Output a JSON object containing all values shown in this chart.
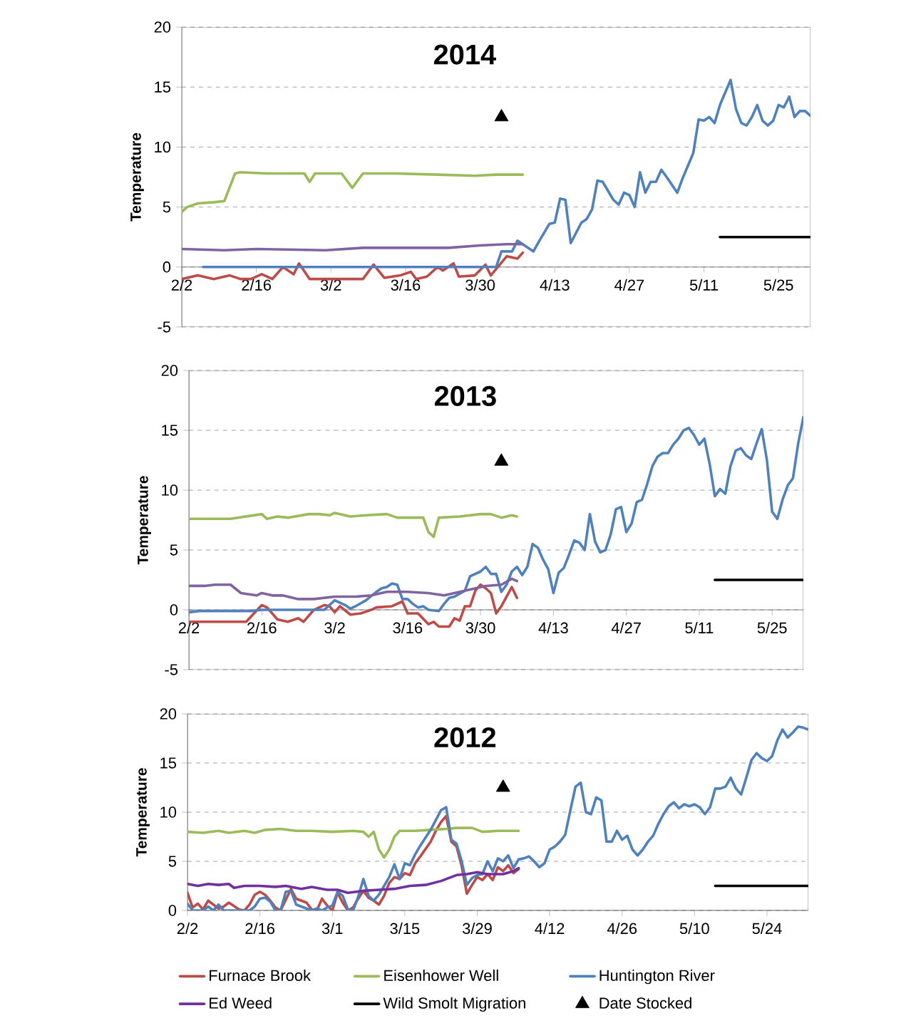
{
  "chart_data": [
    {
      "type": "line",
      "title": "2014",
      "ylabel": "Temperature",
      "xlim": [
        "2014-02-02",
        "2014-05-31"
      ],
      "ylim": [
        -5,
        20
      ],
      "yticks": [
        -5,
        0,
        5,
        10,
        15,
        20
      ],
      "grid": "y",
      "legend": false,
      "xticks": [
        {
          "value": "2014-02-02",
          "label": "2/2"
        },
        {
          "value": "2014-02-16",
          "label": "2/16"
        },
        {
          "value": "2014-03-02",
          "label": "3/2"
        },
        {
          "value": "2014-03-16",
          "label": "3/16"
        },
        {
          "value": "2014-03-30",
          "label": "3/30"
        },
        {
          "value": "2014-04-13",
          "label": "4/13"
        },
        {
          "value": "2014-04-27",
          "label": "4/27"
        },
        {
          "value": "2014-05-11",
          "label": "5/11"
        },
        {
          "value": "2014-05-25",
          "label": "5/25"
        }
      ],
      "series": [
        {
          "color": "#be4b48",
          "x": [
            "2014-02-02",
            "2014-02-05",
            "2014-02-08",
            "2014-02-11",
            "2014-02-13",
            "2014-02-15",
            "2014-02-17",
            "2014-02-19",
            "2014-02-21",
            "2014-02-23",
            "2014-02-24",
            "2014-02-26",
            "2014-03-08",
            "2014-03-10",
            "2014-03-12",
            "2014-03-15",
            "2014-03-17",
            "2014-03-18",
            "2014-03-20",
            "2014-03-22",
            "2014-03-23",
            "2014-03-25",
            "2014-03-26",
            "2014-03-29",
            "2014-03-31",
            "2014-04-01",
            "2014-04-04",
            "2014-04-06",
            "2014-04-07"
          ],
          "values": [
            -1.0,
            -0.7,
            -1.0,
            -0.7,
            -1.0,
            -1.0,
            -0.6,
            -1.0,
            0.0,
            -0.6,
            0.3,
            -1.0,
            -1.0,
            0.2,
            -0.9,
            -0.7,
            -0.4,
            -1.0,
            -0.8,
            0.0,
            -0.3,
            0.3,
            -0.8,
            -0.7,
            0.2,
            -0.7,
            0.9,
            0.7,
            1.2
          ]
        },
        {
          "color": "#9bbb59",
          "x": [
            "2014-02-02",
            "2014-02-03",
            "2014-02-05",
            "2014-02-08",
            "2014-02-10",
            "2014-02-12",
            "2014-02-13",
            "2014-02-18",
            "2014-02-22",
            "2014-02-25",
            "2014-02-26",
            "2014-02-27",
            "2014-03-04",
            "2014-03-06",
            "2014-03-08",
            "2014-03-14",
            "2014-03-22",
            "2014-03-29",
            "2014-04-02",
            "2014-04-07"
          ],
          "values": [
            4.6,
            5.0,
            5.3,
            5.4,
            5.5,
            7.8,
            7.9,
            7.8,
            7.8,
            7.8,
            7.1,
            7.8,
            7.8,
            6.6,
            7.8,
            7.8,
            7.7,
            7.6,
            7.7,
            7.7
          ]
        },
        {
          "color": "#4f81bd",
          "x": [
            "2014-02-06",
            "2014-04-02",
            "2014-04-03",
            "2014-04-05",
            "2014-04-06",
            "2014-04-09",
            "2014-04-10",
            "2014-04-12",
            "2014-04-13",
            "2014-04-14",
            "2014-04-15",
            "2014-04-16",
            "2014-04-18",
            "2014-04-19",
            "2014-04-20",
            "2014-04-21",
            "2014-04-22",
            "2014-04-24",
            "2014-04-25",
            "2014-04-26",
            "2014-04-27",
            "2014-04-28",
            "2014-04-29",
            "2014-04-30",
            "2014-05-01",
            "2014-05-02",
            "2014-05-03",
            "2014-05-04",
            "2014-05-06",
            "2014-05-07",
            "2014-05-09",
            "2014-05-10",
            "2014-05-11",
            "2014-05-12",
            "2014-05-13",
            "2014-05-14",
            "2014-05-16",
            "2014-05-17",
            "2014-05-18",
            "2014-05-19",
            "2014-05-20",
            "2014-05-21",
            "2014-05-22",
            "2014-05-23",
            "2014-05-24",
            "2014-05-25",
            "2014-05-26",
            "2014-05-27",
            "2014-05-28",
            "2014-05-29",
            "2014-05-30",
            "2014-05-31"
          ],
          "values": [
            0.0,
            0.0,
            1.3,
            1.3,
            2.2,
            1.3,
            2.1,
            3.6,
            3.7,
            5.7,
            5.6,
            2.0,
            3.7,
            4.0,
            4.8,
            7.2,
            7.1,
            5.6,
            5.2,
            6.2,
            6.0,
            5.0,
            7.9,
            6.2,
            7.1,
            7.1,
            8.1,
            7.5,
            6.2,
            7.4,
            9.5,
            12.3,
            12.2,
            12.5,
            12.0,
            13.5,
            15.6,
            13.2,
            12.0,
            11.8,
            12.5,
            13.5,
            12.2,
            11.8,
            12.2,
            13.5,
            13.3,
            14.2,
            12.5,
            13.0,
            13.0,
            12.6
          ]
        },
        {
          "color": "#8064a2",
          "x": [
            "2014-02-02",
            "2014-02-10",
            "2014-02-16",
            "2014-03-01",
            "2014-03-08",
            "2014-03-16",
            "2014-03-24",
            "2014-03-30",
            "2014-04-04",
            "2014-04-07"
          ],
          "values": [
            1.5,
            1.4,
            1.5,
            1.4,
            1.6,
            1.6,
            1.6,
            1.8,
            1.9,
            1.9
          ]
        },
        {
          "color": "#000000",
          "x": [
            "2014-05-14",
            "2014-05-31"
          ],
          "values": [
            2.5,
            2.5
          ]
        },
        {
          "type": "scatter",
          "marker": "triangle",
          "color": "#000000",
          "x": [
            "2014-04-03"
          ],
          "values": [
            12.5
          ]
        }
      ]
    },
    {
      "type": "line",
      "title": "2013",
      "ylabel": "Temperature",
      "xlim": [
        "2013-02-02",
        "2013-05-31"
      ],
      "ylim": [
        -5,
        20
      ],
      "yticks": [
        -5,
        0,
        5,
        10,
        15,
        20
      ],
      "grid": "y",
      "legend": false,
      "xticks": [
        {
          "value": "2013-02-02",
          "label": "2/2"
        },
        {
          "value": "2013-02-16",
          "label": "2/16"
        },
        {
          "value": "2013-03-02",
          "label": "3/2"
        },
        {
          "value": "2013-03-16",
          "label": "3/16"
        },
        {
          "value": "2013-03-30",
          "label": "3/30"
        },
        {
          "value": "2013-04-13",
          "label": "4/13"
        },
        {
          "value": "2013-04-27",
          "label": "4/27"
        },
        {
          "value": "2013-05-11",
          "label": "5/11"
        },
        {
          "value": "2013-05-25",
          "label": "5/25"
        }
      ],
      "series": [
        {
          "color": "#be4b48",
          "x": [
            "2013-02-02",
            "2013-02-13",
            "2013-02-16",
            "2013-02-17",
            "2013-02-19",
            "2013-02-21",
            "2013-02-23",
            "2013-02-24",
            "2013-02-26",
            "2013-02-28",
            "2013-03-01",
            "2013-03-02",
            "2013-03-03",
            "2013-03-05",
            "2013-03-07",
            "2013-03-09",
            "2013-03-10",
            "2013-03-13",
            "2013-03-15",
            "2013-03-16",
            "2013-03-18",
            "2013-03-20",
            "2013-03-21",
            "2013-03-22",
            "2013-03-24",
            "2013-03-25",
            "2013-03-26",
            "2013-03-27",
            "2013-03-28",
            "2013-03-29",
            "2013-03-30",
            "2013-03-31",
            "2013-04-01",
            "2013-04-02",
            "2013-04-03",
            "2013-04-05",
            "2013-04-06"
          ],
          "values": [
            -1.0,
            -1.0,
            0.4,
            0.2,
            -0.8,
            -1.0,
            -0.7,
            -1.0,
            0.0,
            0.4,
            0.3,
            -0.2,
            0.3,
            -0.4,
            -0.3,
            0.0,
            0.2,
            0.3,
            0.7,
            -0.3,
            -0.3,
            -1.2,
            -1.0,
            -1.4,
            -1.4,
            -0.7,
            -0.9,
            0.3,
            0.3,
            1.6,
            2.1,
            1.8,
            1.4,
            -0.3,
            0.3,
            1.9,
            1.0
          ]
        },
        {
          "color": "#9bbb59",
          "x": [
            "2013-02-02",
            "2013-02-10",
            "2013-02-16",
            "2013-02-17",
            "2013-02-19",
            "2013-02-21",
            "2013-02-25",
            "2013-02-27",
            "2013-03-01",
            "2013-03-02",
            "2013-03-05",
            "2013-03-08",
            "2013-03-12",
            "2013-03-14",
            "2013-03-19",
            "2013-03-20",
            "2013-03-21",
            "2013-03-22",
            "2013-03-26",
            "2013-03-30",
            "2013-04-01",
            "2013-04-03",
            "2013-04-05",
            "2013-04-06"
          ],
          "values": [
            7.6,
            7.6,
            8.0,
            7.6,
            7.8,
            7.7,
            8.0,
            8.0,
            7.9,
            8.1,
            7.8,
            7.9,
            8.0,
            7.7,
            7.7,
            6.5,
            6.1,
            7.7,
            7.8,
            8.0,
            8.0,
            7.7,
            7.9,
            7.8
          ]
        },
        {
          "color": "#4f81bd",
          "x": [
            "2013-02-02",
            "2013-02-04",
            "2013-02-14",
            "2013-02-16",
            "2013-02-28",
            "2013-03-02",
            "2013-03-04",
            "2013-03-05",
            "2013-03-06",
            "2013-03-08",
            "2013-03-10",
            "2013-03-11",
            "2013-03-12",
            "2013-03-13",
            "2013-03-14",
            "2013-03-15",
            "2013-03-16",
            "2013-03-17",
            "2013-03-18",
            "2013-03-19",
            "2013-03-20",
            "2013-03-22",
            "2013-03-23",
            "2013-03-24",
            "2013-03-25",
            "2013-03-27",
            "2013-03-28",
            "2013-03-29",
            "2013-03-30",
            "2013-03-31",
            "2013-04-01",
            "2013-04-02",
            "2013-04-03",
            "2013-04-04",
            "2013-04-05",
            "2013-04-06",
            "2013-04-07",
            "2013-04-08",
            "2013-04-09",
            "2013-04-10",
            "2013-04-11",
            "2013-04-12",
            "2013-04-13",
            "2013-04-14",
            "2013-04-15",
            "2013-04-16",
            "2013-04-17",
            "2013-04-18",
            "2013-04-19",
            "2013-04-20",
            "2013-04-21",
            "2013-04-22",
            "2013-04-23",
            "2013-04-24",
            "2013-04-25",
            "2013-04-26",
            "2013-04-27",
            "2013-04-28",
            "2013-04-29",
            "2013-04-30",
            "2013-05-01",
            "2013-05-02",
            "2013-05-03",
            "2013-05-04",
            "2013-05-05",
            "2013-05-06",
            "2013-05-07",
            "2013-05-08",
            "2013-05-09",
            "2013-05-10",
            "2013-05-11",
            "2013-05-12",
            "2013-05-13",
            "2013-05-14",
            "2013-05-15",
            "2013-05-16",
            "2013-05-17",
            "2013-05-18",
            "2013-05-19",
            "2013-05-20",
            "2013-05-21",
            "2013-05-22",
            "2013-05-23",
            "2013-05-24",
            "2013-05-25",
            "2013-05-26",
            "2013-05-27",
            "2013-05-28",
            "2013-05-29",
            "2013-05-30",
            "2013-05-31"
          ],
          "values": [
            -0.2,
            -0.1,
            -0.1,
            0.0,
            0.0,
            0.8,
            0.4,
            0.1,
            0.3,
            0.8,
            1.5,
            1.8,
            1.9,
            2.2,
            2.1,
            0.9,
            0.9,
            0.5,
            0.2,
            0.3,
            0.0,
            -0.1,
            0.5,
            1.0,
            1.1,
            1.6,
            2.8,
            3.0,
            3.2,
            3.6,
            3.0,
            3.0,
            1.5,
            2.1,
            3.2,
            3.6,
            2.9,
            3.6,
            5.5,
            5.2,
            4.2,
            3.4,
            1.4,
            3.1,
            3.5,
            4.6,
            5.8,
            5.6,
            5.0,
            8.0,
            5.7,
            4.8,
            5.0,
            6.3,
            8.4,
            8.6,
            6.5,
            7.2,
            9.0,
            9.2,
            10.5,
            12.0,
            12.8,
            13.1,
            13.1,
            13.8,
            14.3,
            15.0,
            15.2,
            14.6,
            13.8,
            14.3,
            12.2,
            9.5,
            10.1,
            9.7,
            12.0,
            13.3,
            13.5,
            12.9,
            12.6,
            13.9,
            15.1,
            12.5,
            8.2,
            7.6,
            9.2,
            10.4,
            11.0,
            13.9,
            16.1
          ]
        },
        {
          "color": "#8064a2",
          "x": [
            "2013-02-02",
            "2013-02-05",
            "2013-02-07",
            "2013-02-10",
            "2013-02-12",
            "2013-02-15",
            "2013-02-16",
            "2013-02-18",
            "2013-02-20",
            "2013-02-23",
            "2013-02-26",
            "2013-03-02",
            "2013-03-06",
            "2013-03-09",
            "2013-03-12",
            "2013-03-16",
            "2013-03-20",
            "2013-03-23",
            "2013-03-25",
            "2013-03-28",
            "2013-03-31",
            "2013-04-03",
            "2013-04-05",
            "2013-04-06"
          ],
          "values": [
            2.0,
            2.0,
            2.1,
            2.1,
            1.4,
            1.2,
            1.4,
            1.2,
            1.2,
            0.9,
            0.9,
            1.1,
            1.1,
            1.2,
            1.5,
            1.5,
            1.4,
            1.2,
            1.4,
            1.7,
            2.0,
            2.1,
            2.6,
            2.4
          ]
        },
        {
          "color": "#000000",
          "x": [
            "2013-05-14",
            "2013-05-31"
          ],
          "values": [
            2.5,
            2.5
          ]
        },
        {
          "type": "scatter",
          "marker": "triangle",
          "color": "#000000",
          "x": [
            "2013-04-03"
          ],
          "values": [
            12.4
          ]
        }
      ]
    },
    {
      "type": "line",
      "title": "2012",
      "ylabel": "Temperature",
      "xlim": [
        "2012-02-02",
        "2012-06-01"
      ],
      "ylim": [
        0,
        20
      ],
      "yticks": [
        0,
        5,
        10,
        15,
        20
      ],
      "grid": "y",
      "legend": "bottom",
      "xticks": [
        {
          "value": "2012-02-02",
          "label": "2/2"
        },
        {
          "value": "2012-02-16",
          "label": "2/16"
        },
        {
          "value": "2012-03-01",
          "label": "3/1"
        },
        {
          "value": "2012-03-15",
          "label": "3/15"
        },
        {
          "value": "2012-03-29",
          "label": "3/29"
        },
        {
          "value": "2012-04-12",
          "label": "4/12"
        },
        {
          "value": "2012-04-26",
          "label": "4/26"
        },
        {
          "value": "2012-05-10",
          "label": "5/10"
        },
        {
          "value": "2012-05-24",
          "label": "5/24"
        }
      ],
      "series": [
        {
          "name": "Furnace Brook",
          "color": "#be4b48",
          "x": [
            "2012-02-02",
            "2012-02-03",
            "2012-02-04",
            "2012-02-05",
            "2012-02-06",
            "2012-02-08",
            "2012-02-09",
            "2012-02-10",
            "2012-02-12",
            "2012-02-13",
            "2012-02-14",
            "2012-02-15",
            "2012-02-16",
            "2012-02-17",
            "2012-02-18",
            "2012-02-19",
            "2012-02-20",
            "2012-02-22",
            "2012-02-23",
            "2012-02-25",
            "2012-02-26",
            "2012-02-27",
            "2012-02-28",
            "2012-02-29",
            "2012-03-01",
            "2012-03-02",
            "2012-03-03",
            "2012-03-04",
            "2012-03-05",
            "2012-03-06",
            "2012-03-07",
            "2012-03-08",
            "2012-03-09",
            "2012-03-10",
            "2012-03-11",
            "2012-03-12",
            "2012-03-13",
            "2012-03-14",
            "2012-03-15",
            "2012-03-16",
            "2012-03-17",
            "2012-03-18",
            "2012-03-20",
            "2012-03-21",
            "2012-03-22",
            "2012-03-23",
            "2012-03-24",
            "2012-03-25",
            "2012-03-26",
            "2012-03-27",
            "2012-03-28",
            "2012-03-29",
            "2012-03-30",
            "2012-03-31",
            "2012-04-01",
            "2012-04-02",
            "2012-04-03",
            "2012-04-04",
            "2012-04-05",
            "2012-04-06"
          ],
          "values": [
            1.8,
            0.3,
            0.7,
            0.1,
            1.0,
            0.2,
            0.4,
            0.8,
            0.1,
            0.0,
            0.6,
            1.6,
            1.9,
            1.6,
            1.0,
            0.3,
            0.0,
            2.2,
            1.2,
            0.8,
            0.1,
            0.0,
            1.2,
            0.5,
            0.0,
            1.8,
            0.8,
            0.0,
            0.3,
            1.2,
            2.0,
            1.3,
            1.0,
            0.6,
            1.5,
            2.8,
            3.4,
            3.2,
            3.8,
            3.6,
            4.8,
            5.5,
            7.0,
            8.1,
            9.0,
            9.6,
            7.0,
            6.5,
            4.5,
            1.7,
            2.6,
            3.4,
            3.1,
            3.7,
            3.1,
            4.4,
            4.0,
            4.6,
            3.8,
            4.2
          ]
        },
        {
          "name": "Eisenhower Well",
          "color": "#9bbb59",
          "x": [
            "2012-02-02",
            "2012-02-05",
            "2012-02-08",
            "2012-02-10",
            "2012-02-13",
            "2012-02-15",
            "2012-02-17",
            "2012-02-20",
            "2012-02-23",
            "2012-02-26",
            "2012-03-01",
            "2012-03-05",
            "2012-03-07",
            "2012-03-08",
            "2012-03-09",
            "2012-03-10",
            "2012-03-11",
            "2012-03-12",
            "2012-03-13",
            "2012-03-14",
            "2012-03-17",
            "2012-03-20",
            "2012-03-23",
            "2012-03-25",
            "2012-03-28",
            "2012-03-30",
            "2012-04-02",
            "2012-04-05",
            "2012-04-06"
          ],
          "values": [
            8.0,
            7.9,
            8.1,
            7.9,
            8.1,
            7.9,
            8.2,
            8.3,
            8.1,
            8.1,
            8.0,
            8.1,
            8.0,
            7.5,
            8.0,
            6.2,
            5.4,
            6.2,
            7.5,
            8.1,
            8.1,
            8.2,
            8.3,
            8.4,
            8.4,
            8.0,
            8.1,
            8.1,
            8.1
          ]
        },
        {
          "name": "Huntington River",
          "color": "#4f81bd",
          "x": [
            "2012-02-02",
            "2012-02-03",
            "2012-02-05",
            "2012-02-06",
            "2012-02-07",
            "2012-02-08",
            "2012-02-09",
            "2012-02-14",
            "2012-02-15",
            "2012-02-16",
            "2012-02-17",
            "2012-02-18",
            "2012-02-19",
            "2012-02-20",
            "2012-02-21",
            "2012-02-22",
            "2012-02-23",
            "2012-02-24",
            "2012-02-25",
            "2012-02-26",
            "2012-02-27",
            "2012-02-28",
            "2012-02-29",
            "2012-03-01",
            "2012-03-02",
            "2012-03-03",
            "2012-03-04",
            "2012-03-05",
            "2012-03-06",
            "2012-03-07",
            "2012-03-08",
            "2012-03-09",
            "2012-03-10",
            "2012-03-11",
            "2012-03-12",
            "2012-03-13",
            "2012-03-14",
            "2012-03-15",
            "2012-03-16",
            "2012-03-17",
            "2012-03-18",
            "2012-03-19",
            "2012-03-20",
            "2012-03-21",
            "2012-03-22",
            "2012-03-23",
            "2012-03-24",
            "2012-03-25",
            "2012-03-26",
            "2012-03-27",
            "2012-03-28",
            "2012-03-29",
            "2012-03-30",
            "2012-03-31",
            "2012-04-01",
            "2012-04-02",
            "2012-04-03",
            "2012-04-04",
            "2012-04-05",
            "2012-04-06",
            "2012-04-07",
            "2012-04-08",
            "2012-04-09",
            "2012-04-10",
            "2012-04-11",
            "2012-04-12",
            "2012-04-13",
            "2012-04-14",
            "2012-04-15",
            "2012-04-16",
            "2012-04-17",
            "2012-04-18",
            "2012-04-19",
            "2012-04-20",
            "2012-04-21",
            "2012-04-22",
            "2012-04-23",
            "2012-04-24",
            "2012-04-25",
            "2012-04-26",
            "2012-04-27",
            "2012-04-28",
            "2012-04-29",
            "2012-04-30",
            "2012-05-01",
            "2012-05-02",
            "2012-05-03",
            "2012-05-04",
            "2012-05-05",
            "2012-05-06",
            "2012-05-07",
            "2012-05-08",
            "2012-05-09",
            "2012-05-10",
            "2012-05-11",
            "2012-05-12",
            "2012-05-13",
            "2012-05-14",
            "2012-05-15",
            "2012-05-16",
            "2012-05-17",
            "2012-05-18",
            "2012-05-19",
            "2012-05-20",
            "2012-05-21",
            "2012-05-22",
            "2012-05-23",
            "2012-05-24",
            "2012-05-25",
            "2012-05-26",
            "2012-05-27",
            "2012-05-28",
            "2012-05-29",
            "2012-05-30",
            "2012-05-31",
            "2012-06-01"
          ],
          "values": [
            0.7,
            0.0,
            0.0,
            0.4,
            0.0,
            0.6,
            0.0,
            0.0,
            0.4,
            1.2,
            1.3,
            0.9,
            0.0,
            0.0,
            1.9,
            2.0,
            0.6,
            0.4,
            0.2,
            0.0,
            0.2,
            0.0,
            0.3,
            0.5,
            1.9,
            1.5,
            0.1,
            0.0,
            1.4,
            3.2,
            1.5,
            1.0,
            1.6,
            2.5,
            3.4,
            4.7,
            3.2,
            4.8,
            4.6,
            5.7,
            6.6,
            7.4,
            8.2,
            9.2,
            10.2,
            10.5,
            7.2,
            6.8,
            5.0,
            2.6,
            3.3,
            3.6,
            3.7,
            5.0,
            4.0,
            5.3,
            5.0,
            5.6,
            4.3,
            5.2,
            5.3,
            5.5,
            5.0,
            4.4,
            4.8,
            6.2,
            6.5,
            7.0,
            7.7,
            10.2,
            12.6,
            13.0,
            10.0,
            9.8,
            11.5,
            11.2,
            7.0,
            7.0,
            8.1,
            7.2,
            7.6,
            6.2,
            5.6,
            6.2,
            7.0,
            7.6,
            8.8,
            9.8,
            10.6,
            11.0,
            10.4,
            10.8,
            10.6,
            10.8,
            10.5,
            9.8,
            10.5,
            12.4,
            12.4,
            12.6,
            13.5,
            12.4,
            11.8,
            13.5,
            15.3,
            16.0,
            15.5,
            15.2,
            15.7,
            17.3,
            18.4,
            17.6,
            18.1,
            18.7,
            18.6,
            18.4
          ]
        },
        {
          "name": "Ed Weed",
          "color": "#7030a0",
          "x": [
            "2012-02-02",
            "2012-02-04",
            "2012-02-06",
            "2012-02-08",
            "2012-02-10",
            "2012-02-11",
            "2012-02-13",
            "2012-02-16",
            "2012-02-19",
            "2012-02-21",
            "2012-02-24",
            "2012-02-26",
            "2012-02-29",
            "2012-03-02",
            "2012-03-04",
            "2012-03-07",
            "2012-03-10",
            "2012-03-13",
            "2012-03-16",
            "2012-03-19",
            "2012-03-22",
            "2012-03-25",
            "2012-03-27",
            "2012-03-29",
            "2012-03-31",
            "2012-04-03",
            "2012-04-05",
            "2012-04-06"
          ],
          "values": [
            2.7,
            2.5,
            2.7,
            2.6,
            2.7,
            2.3,
            2.5,
            2.5,
            2.4,
            2.5,
            2.2,
            2.4,
            2.1,
            2.1,
            1.8,
            2.0,
            2.1,
            2.2,
            2.5,
            2.6,
            3.0,
            3.6,
            3.7,
            3.9,
            3.7,
            3.7,
            4.0,
            4.3
          ]
        },
        {
          "name": "Wild Smolt Migration",
          "color": "#000000",
          "x": [
            "2012-05-14",
            "2012-06-01"
          ],
          "values": [
            2.5,
            2.5
          ]
        },
        {
          "name": "Date Stocked",
          "type": "scatter",
          "marker": "triangle",
          "color": "#000000",
          "x": [
            "2012-04-03"
          ],
          "values": [
            12.5
          ]
        }
      ]
    }
  ]
}
